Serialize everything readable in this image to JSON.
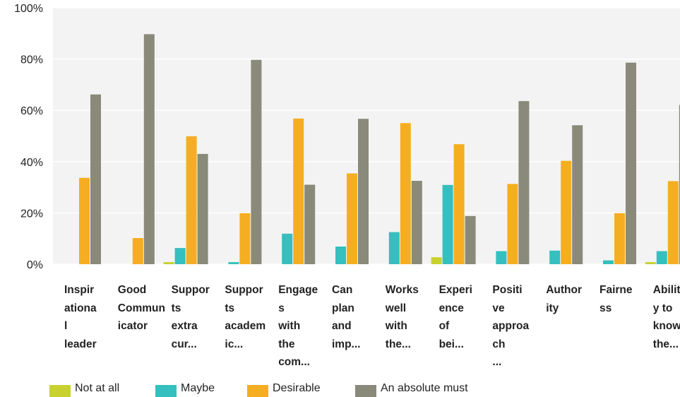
{
  "chart_data": {
    "type": "bar",
    "categories": [
      "Inspir\nationa\nl\nleader",
      "Good\nCommun\nicator",
      "Suppor\nts\nextra\ncur...",
      "Suppor\nts\nacadem\nic...",
      "Engage\ns\nwith\nthe\ncom...",
      "Can\nplan\nand\nimp...",
      "Works\nwell\nwith\nthe...",
      "Experi\nence\nof\nbei...",
      "Positi\nve\napproa\nch\n...",
      "Author\nity",
      "Fairne\nss",
      "Abilit\ny to\nknow\nthe..."
    ],
    "series": [
      {
        "name": "Not at all",
        "color": "#c8d12e",
        "values": [
          0,
          0,
          0.8,
          0,
          0,
          0,
          0,
          2.7,
          0,
          0,
          0,
          0.8
        ]
      },
      {
        "name": "Maybe",
        "color": "#35bfbf",
        "values": [
          0,
          0,
          6.3,
          0.8,
          11.9,
          6.9,
          12.5,
          30.9,
          5.1,
          5.3,
          1.5,
          5.1
        ]
      },
      {
        "name": "Desirable",
        "color": "#f5ae21",
        "values": [
          33.7,
          10.2,
          49.9,
          19.9,
          56.8,
          35.4,
          55,
          46.8,
          31.3,
          40.3,
          19.9,
          32.4
        ]
      },
      {
        "name": "An absolute must",
        "color": "#898a7a",
        "values": [
          66.2,
          89.7,
          43,
          79.7,
          31,
          56.7,
          32.5,
          18.8,
          63.6,
          54.2,
          78.6,
          62.1
        ]
      }
    ],
    "yticks": [
      "0%",
      "20%",
      "40%",
      "60%",
      "80%",
      "100%"
    ],
    "ylim": [
      0,
      100
    ],
    "grid": "horizontal",
    "legend_position": "bottom-left"
  }
}
